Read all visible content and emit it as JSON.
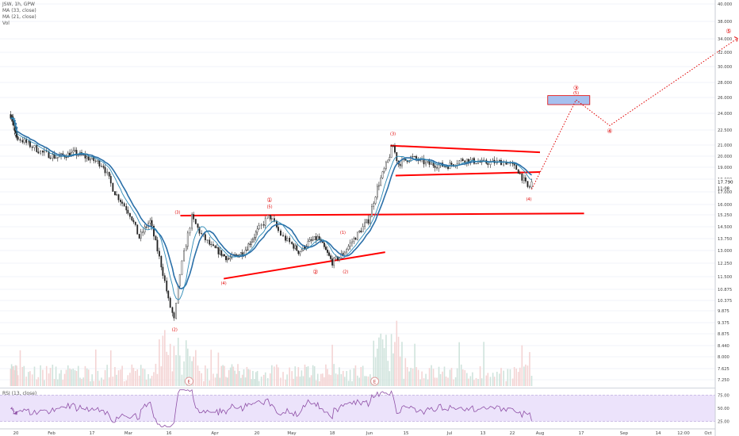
{
  "legend": {
    "symbol": "JSW, 1h, GPW",
    "ma1": "MA (33, close)",
    "ma2": "MA (21, close)",
    "vol": "Vol",
    "rsi": "RSI (13, close)"
  },
  "price_axis": {
    "ticks": [
      "40.000",
      "38.000",
      "36.000",
      "34.000",
      "32.000",
      "30.000",
      "28.000",
      "26.000",
      "24.000",
      "22.500",
      "21.000",
      "20.000",
      "19.000",
      "18.000",
      "17.000",
      "16.000",
      "15.250",
      "14.500",
      "13.750",
      "13.000",
      "12.250",
      "11.500",
      "10.875",
      "10.375",
      "9.875",
      "9.375",
      "8.875",
      "8.440",
      "8.000",
      "7.625",
      "7.250"
    ],
    "current_price": "17.790",
    "countdown": "11:08"
  },
  "rsi_axis": {
    "ticks": [
      "75.00",
      "50.00",
      "25.00"
    ]
  },
  "time_axis": {
    "ticks": [
      "20",
      "Feb",
      "17",
      "Mar",
      "16",
      "Apr",
      "20",
      "May",
      "18",
      "Jun",
      "15",
      "Jul",
      "13",
      "22",
      "Aug",
      "17",
      "Sep",
      "14",
      "12:00",
      "Oct"
    ]
  },
  "colors": {
    "up": "#222222",
    "ma33": "#2a6fa8",
    "ma21": "#2e8ab5",
    "trend": "#ff0000",
    "wave": "#e00000",
    "zone": "#a6c0ef",
    "rsi": "#8e4fa6",
    "rsi_band": "#ece3fb"
  },
  "chart_data": {
    "type": "line",
    "title": "",
    "instrument": "JSW, 1h, GPW",
    "ylim": [
      7.0,
      40.5
    ],
    "price_path": [
      {
        "t": "2020-01-08",
        "p": 23.9
      },
      {
        "t": "2020-01-15",
        "p": 22.7
      },
      {
        "t": "2020-01-22",
        "p": 21.5
      },
      {
        "t": "2020-01-29",
        "p": 20.3
      },
      {
        "t": "2020-02-03",
        "p": 19.9
      },
      {
        "t": "2020-02-10",
        "p": 20.3
      },
      {
        "t": "2020-02-17",
        "p": 19.7
      },
      {
        "t": "2020-02-21",
        "p": 19.2
      },
      {
        "t": "2020-02-25",
        "p": 17.0
      },
      {
        "t": "2020-03-02",
        "p": 15.2
      },
      {
        "t": "2020-03-05",
        "p": 13.8
      },
      {
        "t": "2020-03-09",
        "p": 14.9
      },
      {
        "t": "2020-03-12",
        "p": 12.9
      },
      {
        "t": "2020-03-16",
        "p": 10.3
      },
      {
        "t": "2020-03-18",
        "p": 9.45
      },
      {
        "t": "2020-03-20",
        "p": 11.7
      },
      {
        "t": "2020-03-24",
        "p": 15.1
      },
      {
        "t": "2020-03-27",
        "p": 14.1
      },
      {
        "t": "2020-03-31",
        "p": 13.2
      },
      {
        "t": "2020-04-07",
        "p": 12.5
      },
      {
        "t": "2020-04-14",
        "p": 12.9
      },
      {
        "t": "2020-04-21",
        "p": 14.4
      },
      {
        "t": "2020-04-24",
        "p": 15.2
      },
      {
        "t": "2020-04-28",
        "p": 13.9
      },
      {
        "t": "2020-05-04",
        "p": 12.9
      },
      {
        "t": "2020-05-08",
        "p": 13.5
      },
      {
        "t": "2020-05-12",
        "p": 13.8
      },
      {
        "t": "2020-05-18",
        "p": 12.3
      },
      {
        "t": "2020-05-22",
        "p": 12.8
      },
      {
        "t": "2020-05-27",
        "p": 13.9
      },
      {
        "t": "2020-06-01",
        "p": 15.0
      },
      {
        "t": "2020-06-04",
        "p": 17.3
      },
      {
        "t": "2020-06-08",
        "p": 19.5
      },
      {
        "t": "2020-06-10",
        "p": 21.0
      },
      {
        "t": "2020-06-12",
        "p": 19.3
      },
      {
        "t": "2020-06-17",
        "p": 19.9
      },
      {
        "t": "2020-06-23",
        "p": 19.3
      },
      {
        "t": "2020-06-30",
        "p": 19.1
      },
      {
        "t": "2020-07-06",
        "p": 19.7
      },
      {
        "t": "2020-07-13",
        "p": 19.4
      },
      {
        "t": "2020-07-20",
        "p": 19.5
      },
      {
        "t": "2020-07-24",
        "p": 18.8
      },
      {
        "t": "2020-07-28",
        "p": 17.2
      },
      {
        "t": "2020-07-29",
        "p": 17.79
      }
    ],
    "lines": [
      {
        "name": "resistance",
        "p1": {
          "t": "2020-03-20",
          "p": 15.2
        },
        "p2": {
          "t": "2020-08-18",
          "p": 15.35
        }
      },
      {
        "name": "wedge-support",
        "p1": {
          "t": "2020-04-05",
          "p": 11.4
        },
        "p2": {
          "t": "2020-06-07",
          "p": 12.9
        }
      },
      {
        "name": "triangle-top",
        "p1": {
          "t": "2020-06-09",
          "p": 20.95
        },
        "p2": {
          "t": "2020-08-01",
          "p": 20.35
        }
      },
      {
        "name": "triangle-bottom",
        "p1": {
          "t": "2020-06-11",
          "p": 18.3
        },
        "p2": {
          "t": "2020-08-01",
          "p": 18.6
        }
      }
    ],
    "target_zone": {
      "t1": "2020-08-04",
      "t2": "2020-08-20",
      "p1": 25.1,
      "p2": 26.25
    },
    "projection": [
      {
        "t": "2020-07-29",
        "p": 17.2
      },
      {
        "t": "2020-08-15",
        "p": 25.7
      },
      {
        "t": "2020-08-27",
        "p": 22.9
      },
      {
        "t": "2020-10-11",
        "p": 34.1
      }
    ],
    "wave_labels": [
      {
        "t": "2020-03-18",
        "p": 9.0,
        "label": "(2)"
      },
      {
        "t": "2020-03-19",
        "p": 15.35,
        "label": "(3)"
      },
      {
        "t": "2020-04-05",
        "p": 11.1,
        "label": "(4)"
      },
      {
        "t": "2020-04-24",
        "p": 16.2,
        "label": "①",
        "circle": true
      },
      {
        "t": "2020-04-24",
        "p": 15.75,
        "label": "(5)"
      },
      {
        "t": "2020-05-11",
        "p": 11.65,
        "label": "②",
        "circle": true
      },
      {
        "t": "2020-05-22",
        "p": 14.05,
        "label": "(1)"
      },
      {
        "t": "2020-05-23",
        "p": 11.7,
        "label": "(2)"
      },
      {
        "t": "2020-06-10",
        "p": 22.0,
        "label": "(3)"
      },
      {
        "t": "2020-07-28",
        "p": 16.3,
        "label": "(4)"
      },
      {
        "t": "2020-08-15",
        "p": 27.0,
        "label": "③",
        "circle": true
      },
      {
        "t": "2020-08-15",
        "p": 26.4,
        "label": "(5)"
      },
      {
        "t": "2020-08-27",
        "p": 22.2,
        "label": "④",
        "circle": true
      },
      {
        "t": "2020-10-08",
        "p": 35.3,
        "label": "⑤",
        "circle": true
      }
    ],
    "events": [
      {
        "t": "2020-03-23",
        "label": "E"
      },
      {
        "t": "2020-06-03",
        "label": "E"
      }
    ],
    "rsi": {
      "name": "RSI (13, close)",
      "ylim": [
        20,
        80
      ],
      "band": [
        30,
        70
      ],
      "current": 31
    },
    "volume_present": true
  }
}
